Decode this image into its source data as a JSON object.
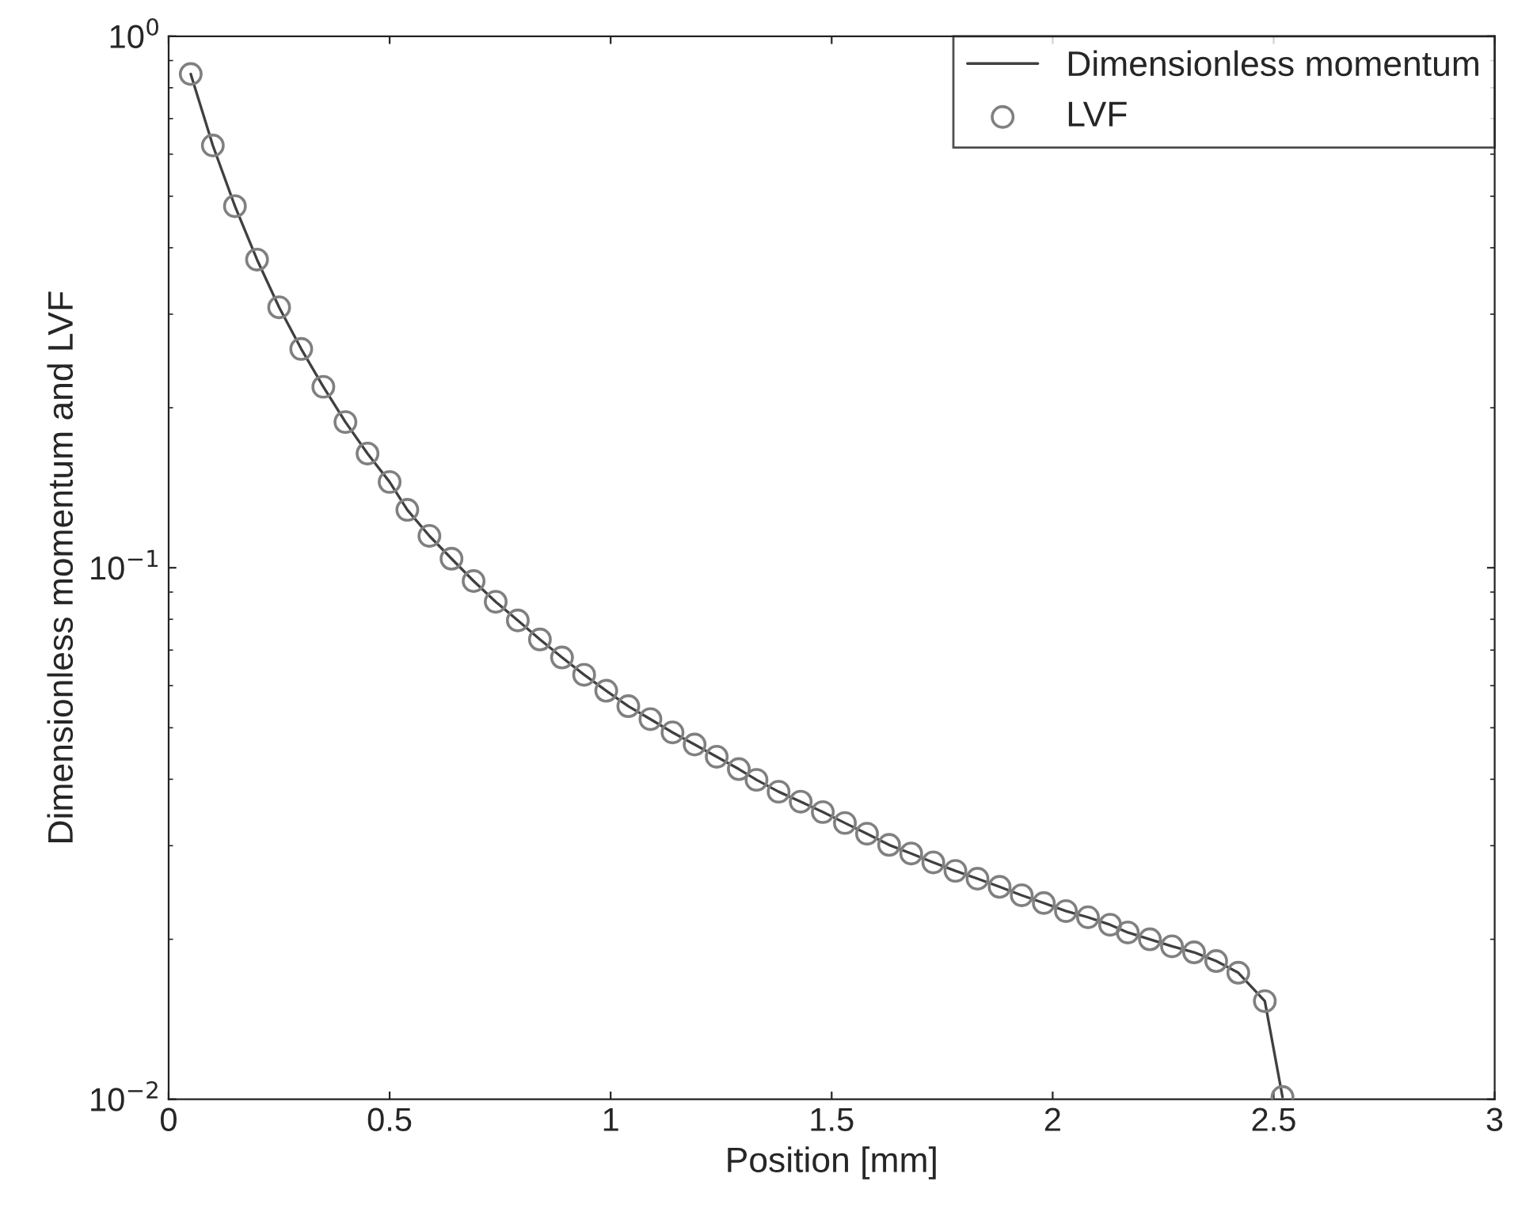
{
  "chart_data": {
    "type": "line",
    "xlabel": "Position [mm]",
    "ylabel": "Dimensionless momentum and LVF",
    "log": "y",
    "x": [
      0.05,
      0.1,
      0.15,
      0.2,
      0.25,
      0.3,
      0.35,
      0.4,
      0.45,
      0.5,
      0.54,
      0.59,
      0.64,
      0.69,
      0.74,
      0.79,
      0.84,
      0.89,
      0.94,
      0.99,
      1.04,
      1.09,
      1.14,
      1.19,
      1.24,
      1.29,
      1.33,
      1.38,
      1.43,
      1.48,
      1.53,
      1.58,
      1.63,
      1.68,
      1.73,
      1.78,
      1.83,
      1.88,
      1.93,
      1.98,
      2.03,
      2.08,
      2.13,
      2.17,
      2.22,
      2.27,
      2.32,
      2.37,
      2.42,
      2.48,
      2.52
    ],
    "series": [
      {
        "name": "Dimensionless momentum",
        "marker": "none",
        "line_style": "solid",
        "color": "#404040",
        "values": [
          0.849,
          0.623,
          0.479,
          0.38,
          0.309,
          0.258,
          0.219,
          0.188,
          0.164,
          0.145,
          0.1285,
          0.1148,
          0.104,
          0.0944,
          0.0863,
          0.0796,
          0.0733,
          0.0678,
          0.0629,
          0.0587,
          0.0549,
          0.0519,
          0.049,
          0.0465,
          0.0441,
          0.0418,
          0.0399,
          0.0379,
          0.0363,
          0.0347,
          0.0331,
          0.0316,
          0.0301,
          0.029,
          0.0279,
          0.0269,
          0.026,
          0.0251,
          0.0242,
          0.0234,
          0.0226,
          0.022,
          0.0213,
          0.0206,
          0.02,
          0.0194,
          0.0189,
          0.0182,
          0.0173,
          0.0153,
          0.0101
        ]
      },
      {
        "name": "LVF",
        "type": "scatter",
        "marker": "circle",
        "color": "#808080",
        "values": [
          0.849,
          0.623,
          0.479,
          0.38,
          0.309,
          0.258,
          0.219,
          0.188,
          0.164,
          0.145,
          0.1285,
          0.1148,
          0.104,
          0.0944,
          0.0863,
          0.0796,
          0.0733,
          0.0678,
          0.0629,
          0.0587,
          0.0549,
          0.0519,
          0.049,
          0.0465,
          0.0441,
          0.0418,
          0.0399,
          0.0379,
          0.0363,
          0.0347,
          0.0331,
          0.0316,
          0.0301,
          0.029,
          0.0279,
          0.0269,
          0.026,
          0.0251,
          0.0242,
          0.0234,
          0.0226,
          0.022,
          0.0213,
          0.0206,
          0.02,
          0.0194,
          0.0189,
          0.0182,
          0.0173,
          0.0153,
          0.0101
        ]
      }
    ],
    "xlim": [
      0,
      3
    ],
    "xticks": [
      0,
      0.5,
      1,
      1.5,
      2,
      2.5,
      3
    ],
    "ylim": [
      0.01,
      1
    ],
    "yticks": [
      {
        "value": 0.01,
        "label": "10$^{−2}$"
      },
      {
        "value": 0.1,
        "label": "10$^{−1}$"
      },
      {
        "value": 1,
        "label": "10$^{0}$"
      }
    ],
    "grid": false,
    "legend": "top right"
  }
}
